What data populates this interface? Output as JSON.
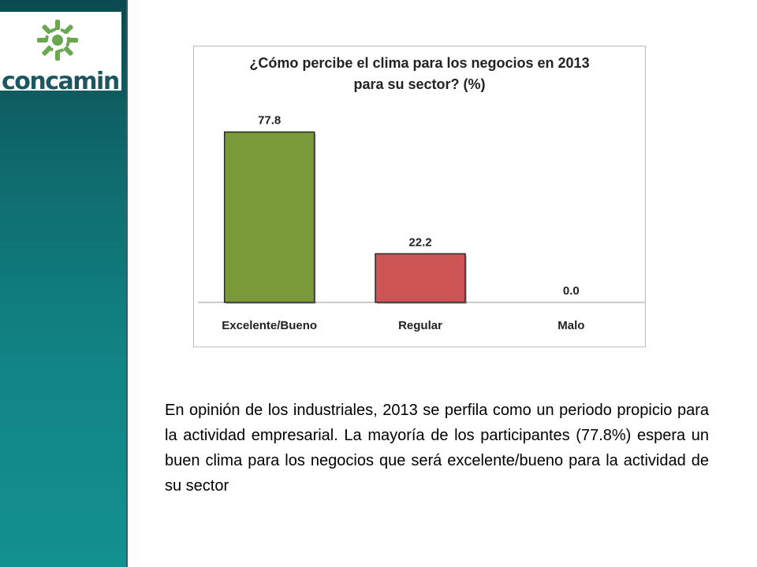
{
  "sidebar": {
    "logo_text": "concamin"
  },
  "chart_data": {
    "type": "bar",
    "title": "¿Cómo percibe el clima para los negocios en 2013 para su sector? (%)",
    "title_lines": [
      "¿Cómo percibe el clima para los negocios en 2013",
      "para su sector? (%)"
    ],
    "categories": [
      "Excelente/Bueno",
      "Regular",
      "Malo"
    ],
    "values": [
      77.8,
      22.2,
      0.0
    ],
    "value_labels": [
      "77.8",
      "22.2",
      "0.0"
    ],
    "colors": [
      "#7a9a3a",
      "#cd5555",
      "#999999"
    ],
    "border_color": "#2a2a2a",
    "xlabel": "",
    "ylabel": "",
    "ylim": [
      0,
      85
    ],
    "grid": false,
    "legend": "none"
  },
  "body": {
    "paragraph": "En opinión de los industriales, 2013 se perfila como un periodo propicio para la actividad empresarial. La mayoría de los participantes (77.8%) espera un buen clima para los negocios que será excelente/bueno para la actividad de su sector"
  }
}
